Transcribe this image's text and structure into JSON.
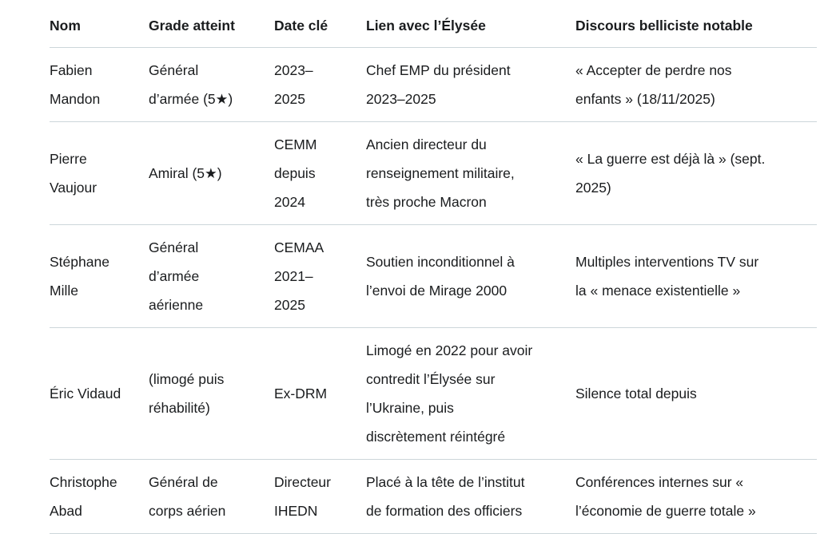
{
  "colors": {
    "background": "#ffffff",
    "text": "#1a1c1e",
    "divider": "#ccd6da"
  },
  "table": {
    "columns": [
      {
        "label": "Nom"
      },
      {
        "label": "Grade atteint"
      },
      {
        "label": "Date clé"
      },
      {
        "label": "Lien avec l’Élysée"
      },
      {
        "label": "Discours belliciste notable"
      }
    ],
    "rows": [
      {
        "nom": "Fabien\nMandon",
        "grade": "Général\nd’armée (5★)",
        "date": "2023–\n2025",
        "lien": "Chef EMP du président\n2023–2025",
        "discours": "« Accepter de perdre nos\nenfants » (18/11/2025)"
      },
      {
        "nom": "Pierre\nVaujour",
        "grade": "Amiral (5★)",
        "date": "CEMM\ndepuis\n2024",
        "lien": "Ancien directeur du\nrenseignement militaire,\ntrès proche Macron",
        "discours": "« La guerre est déjà là » (sept.\n2025)"
      },
      {
        "nom": "Stéphane\nMille",
        "grade": "Général\nd’armée\naérienne",
        "date": "CEMAA\n2021–\n2025",
        "lien": "Soutien inconditionnel à\nl’envoi de Mirage 2000",
        "discours": "Multiples interventions TV sur\nla « menace existentielle »"
      },
      {
        "nom": "Éric Vidaud",
        "grade": "(limogé puis\nréhabilité)",
        "date": "Ex-DRM",
        "lien": "Limogé en 2022 pour avoir\ncontredit l’Élysée sur\nl’Ukraine, puis\ndiscrètement réintégré",
        "discours": "Silence total depuis"
      },
      {
        "nom": "Christophe\nAbad",
        "grade": "Général de\ncorps aérien",
        "date": "Directeur\nIHEDN",
        "lien": "Placé à la tête de l’institut\nde formation des officiers",
        "discours": "Conférences internes sur «\nl’économie de guerre totale »"
      }
    ]
  }
}
